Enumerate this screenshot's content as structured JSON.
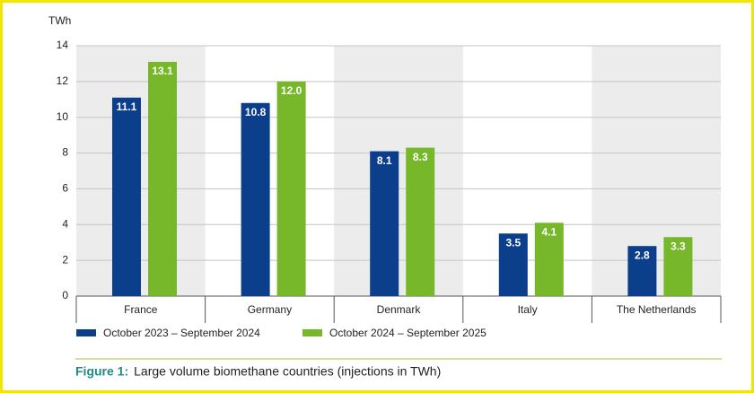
{
  "chart_data": {
    "type": "bar",
    "y_label": "TWh",
    "categories": [
      "France",
      "Germany",
      "Denmark",
      "Italy",
      "The Netherlands"
    ],
    "series": [
      {
        "name": "October 2023 – September 2024",
        "color": "#0b3f8c",
        "values": [
          11.1,
          10.8,
          8.1,
          3.5,
          2.8
        ],
        "value_labels": [
          "11.1",
          "10.8",
          "8.1",
          "3.5",
          "2.8"
        ]
      },
      {
        "name": "October 2024 – September 2025",
        "color": "#77b82a",
        "values": [
          13.1,
          12.0,
          8.3,
          4.1,
          3.3
        ],
        "value_labels": [
          "13.1",
          "12.0",
          "8.3",
          "4.1",
          "3.3"
        ]
      }
    ],
    "ylim": [
      0,
      14
    ],
    "yticks": [
      0,
      2,
      4,
      6,
      8,
      10,
      12,
      14
    ],
    "grid": true,
    "legend": "bottom"
  },
  "caption": {
    "label": "Figure 1:",
    "text": "Large volume biomethane countries (injections in TWh)"
  }
}
